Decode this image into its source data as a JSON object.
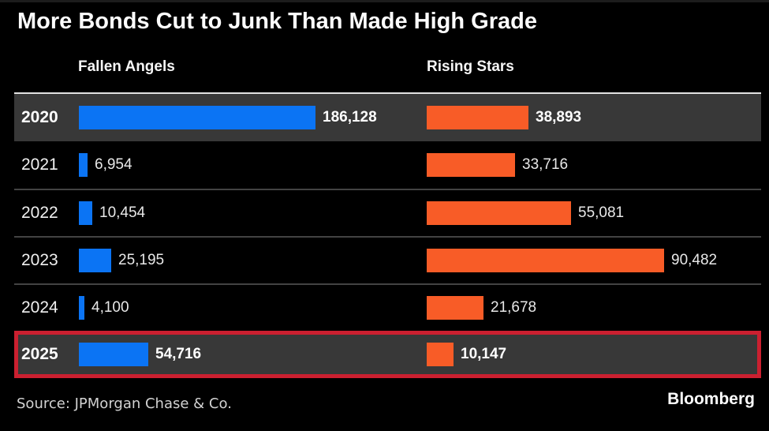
{
  "title": "More Bonds Cut to Junk Than Made High Grade",
  "chart_data": {
    "type": "bar",
    "orientation": "horizontal",
    "title": "More Bonds Cut to Junk Than Made High Grade",
    "categories": [
      "2020",
      "2021",
      "2022",
      "2023",
      "2024",
      "2025"
    ],
    "series": [
      {
        "name": "Fallen Angels",
        "color": "#0b74f4",
        "values": [
          186128,
          6954,
          10454,
          25195,
          4100,
          54716
        ],
        "scale_max": 186128
      },
      {
        "name": "Rising Stars",
        "color": "#f85c27",
        "values": [
          38893,
          33716,
          55081,
          90482,
          21678,
          10147
        ],
        "scale_max": 90482
      }
    ],
    "highlight_rows": [
      "2020",
      "2025"
    ],
    "annotation_box_row": "2025",
    "grid": false,
    "legend_position": "column-headers-top"
  },
  "footer": {
    "source": "Source: JPMorgan Chase & Co.",
    "brand": "Bloomberg"
  },
  "colors": {
    "background": "#000000",
    "fallen_angels_bar": "#0b74f4",
    "rising_stars_bar": "#f85c27",
    "highlight_row_bg": "#383838",
    "annotation_border": "#cb2030",
    "table_top_border": "#e3e3e3",
    "separator": "#434343",
    "text_primary": "#ffffff",
    "text_secondary": "#e8e8e8",
    "source_text": "#d2d2d2"
  }
}
